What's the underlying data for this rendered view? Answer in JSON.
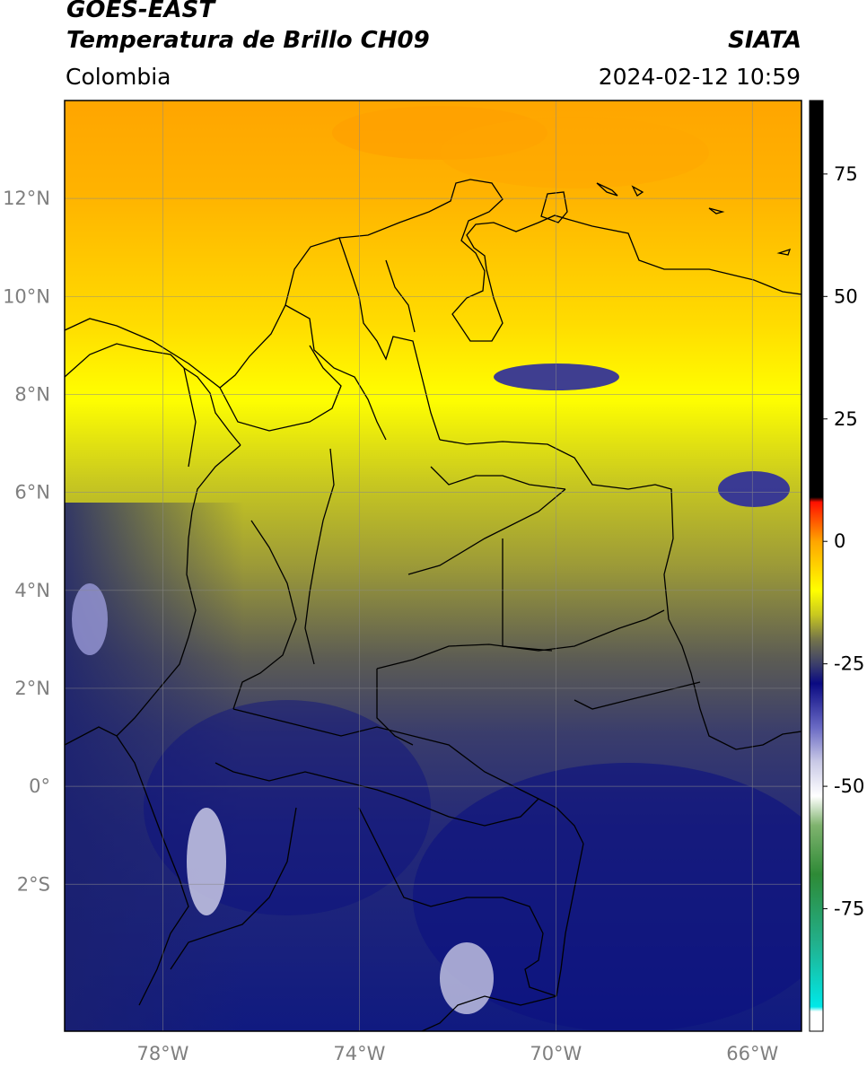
{
  "header": {
    "satellite": "GOES-EAST",
    "product": "Temperatura de Brillo CH09",
    "brand": "SIATA",
    "region": "Colombia",
    "timestamp": "2024-02-12 10:59"
  },
  "map": {
    "lon_range": [
      -80,
      -65
    ],
    "lat_range": [
      -5,
      14
    ],
    "grid": true,
    "lon_ticks": [
      {
        "value": -78,
        "label": "78°W"
      },
      {
        "value": -74,
        "label": "74°W"
      },
      {
        "value": -70,
        "label": "70°W"
      },
      {
        "value": -66,
        "label": "66°W"
      }
    ],
    "lat_ticks": [
      {
        "value": 12,
        "label": "12°N"
      },
      {
        "value": 10,
        "label": "10°N"
      },
      {
        "value": 8,
        "label": "8°N"
      },
      {
        "value": 6,
        "label": "6°N"
      },
      {
        "value": 4,
        "label": "4°N"
      },
      {
        "value": 2,
        "label": "2°N"
      },
      {
        "value": 0,
        "label": "0°"
      },
      {
        "value": -2,
        "label": "2°S"
      }
    ]
  },
  "colorbar": {
    "range": [
      -100,
      90
    ],
    "ticks": [
      {
        "value": 75,
        "label": "75"
      },
      {
        "value": 50,
        "label": "50"
      },
      {
        "value": 25,
        "label": "25"
      },
      {
        "value": 0,
        "label": "0"
      },
      {
        "value": -25,
        "label": "-25"
      },
      {
        "value": -50,
        "label": "-50"
      },
      {
        "value": -75,
        "label": "-75"
      }
    ],
    "stops": [
      {
        "value": -100,
        "color": "#ffffff"
      },
      {
        "value": -96,
        "color": "#ffffff"
      },
      {
        "value": -95,
        "color": "#00e8e8"
      },
      {
        "value": -82,
        "color": "#22b08c"
      },
      {
        "value": -68,
        "color": "#2e8a36"
      },
      {
        "value": -58,
        "color": "#7fb36e"
      },
      {
        "value": -52,
        "color": "#ffffff"
      },
      {
        "value": -45,
        "color": "#c9c9e6"
      },
      {
        "value": -38,
        "color": "#6a6ac4"
      },
      {
        "value": -29,
        "color": "#0a0a82"
      },
      {
        "value": -25,
        "color": "#3c3f6a"
      },
      {
        "value": -20,
        "color": "#74744a"
      },
      {
        "value": -15,
        "color": "#c8c820"
      },
      {
        "value": -10,
        "color": "#ffff00"
      },
      {
        "value": 0,
        "color": "#ffa500"
      },
      {
        "value": 8,
        "color": "#ff1000"
      },
      {
        "value": 9,
        "color": "#000000"
      },
      {
        "value": 90,
        "color": "#000000"
      }
    ]
  }
}
